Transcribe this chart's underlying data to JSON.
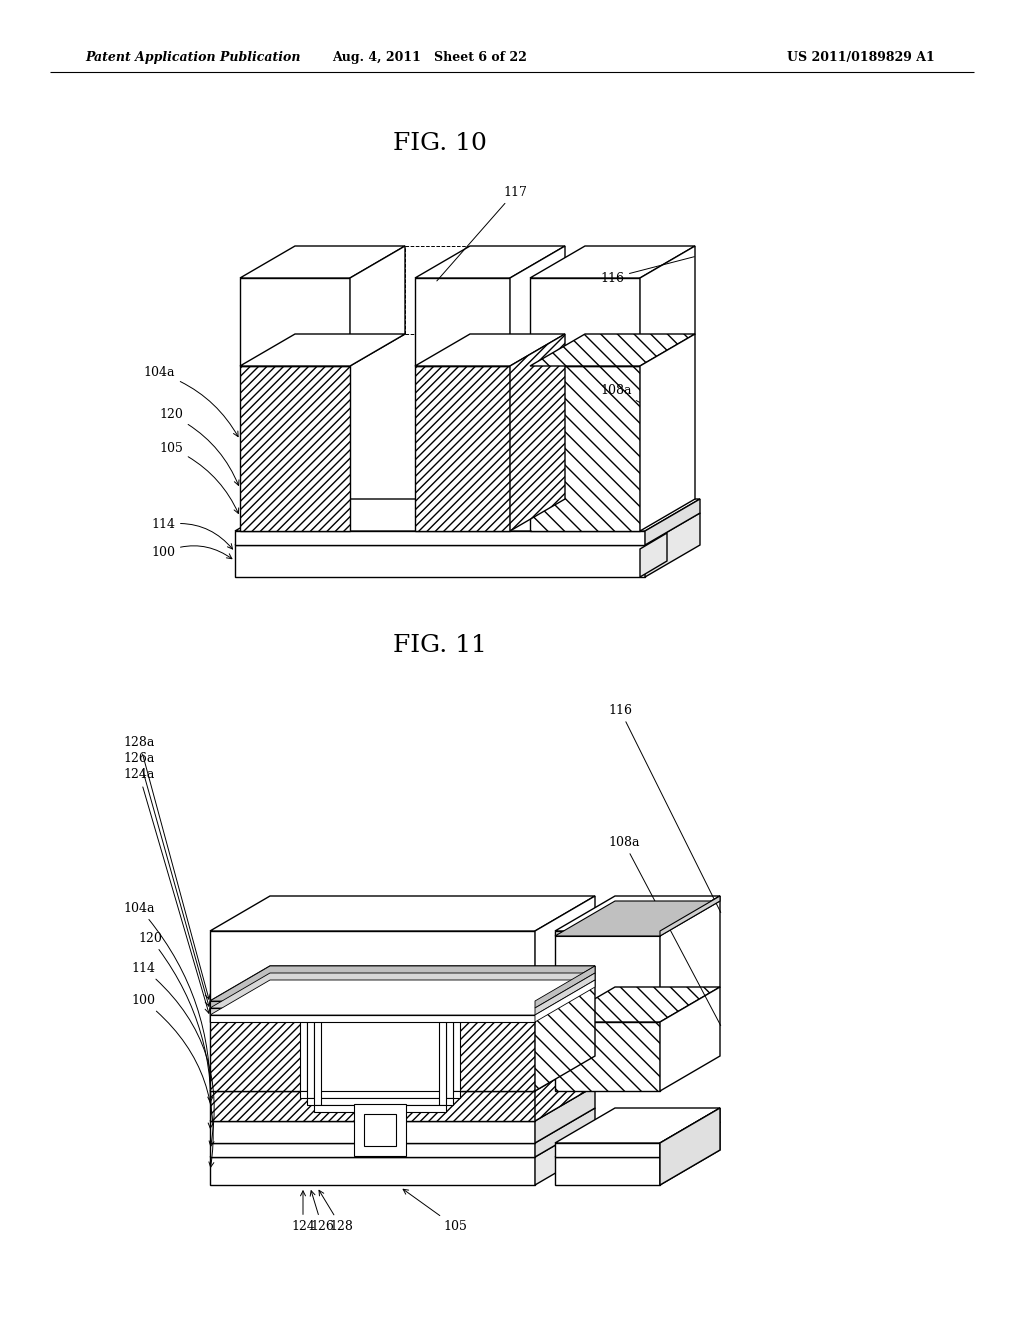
{
  "page_header_left": "Patent Application Publication",
  "page_header_mid": "Aug. 4, 2011   Sheet 6 of 22",
  "page_header_right": "US 2011/0189829 A1",
  "fig10_title": "FIG. 10",
  "fig11_title": "FIG. 11",
  "bg_color": "#ffffff",
  "label_fontsize": 9,
  "header_fontsize": 9,
  "title_fontsize": 18
}
